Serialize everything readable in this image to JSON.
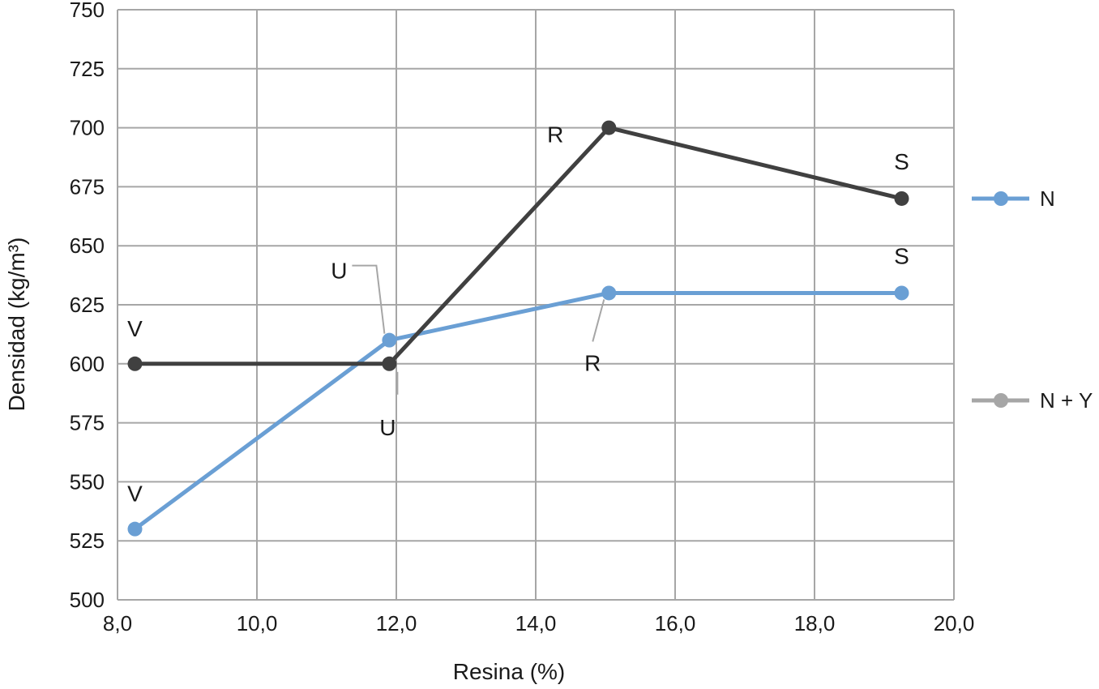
{
  "chart_data": {
    "type": "line",
    "xlabel": "Resina (%)",
    "ylabel": "Densidad (kg/m³)",
    "xlim": [
      8.0,
      20.0
    ],
    "ylim": [
      500,
      750
    ],
    "x_ticks": [
      "8,0",
      "10,0",
      "12,0",
      "14,0",
      "16,0",
      "18,0",
      "20,0"
    ],
    "y_ticks": [
      "500",
      "525",
      "550",
      "575",
      "600",
      "625",
      "650",
      "675",
      "700",
      "725",
      "750"
    ],
    "grid": true,
    "legend_position": "right",
    "series": [
      {
        "name": "N",
        "color": "#6a9fd4",
        "x": [
          8.25,
          11.9,
          15.05,
          19.25
        ],
        "y": [
          530,
          610,
          630,
          630
        ],
        "labels": [
          "V",
          "U",
          "R",
          "S"
        ]
      },
      {
        "name": "N + Y",
        "color": "#404040",
        "legend_color": "#a6a6a6",
        "x": [
          8.25,
          11.9,
          15.05,
          19.25
        ],
        "y": [
          600,
          600,
          700,
          670
        ],
        "labels": [
          "V",
          "U",
          "R",
          "S"
        ]
      }
    ]
  }
}
